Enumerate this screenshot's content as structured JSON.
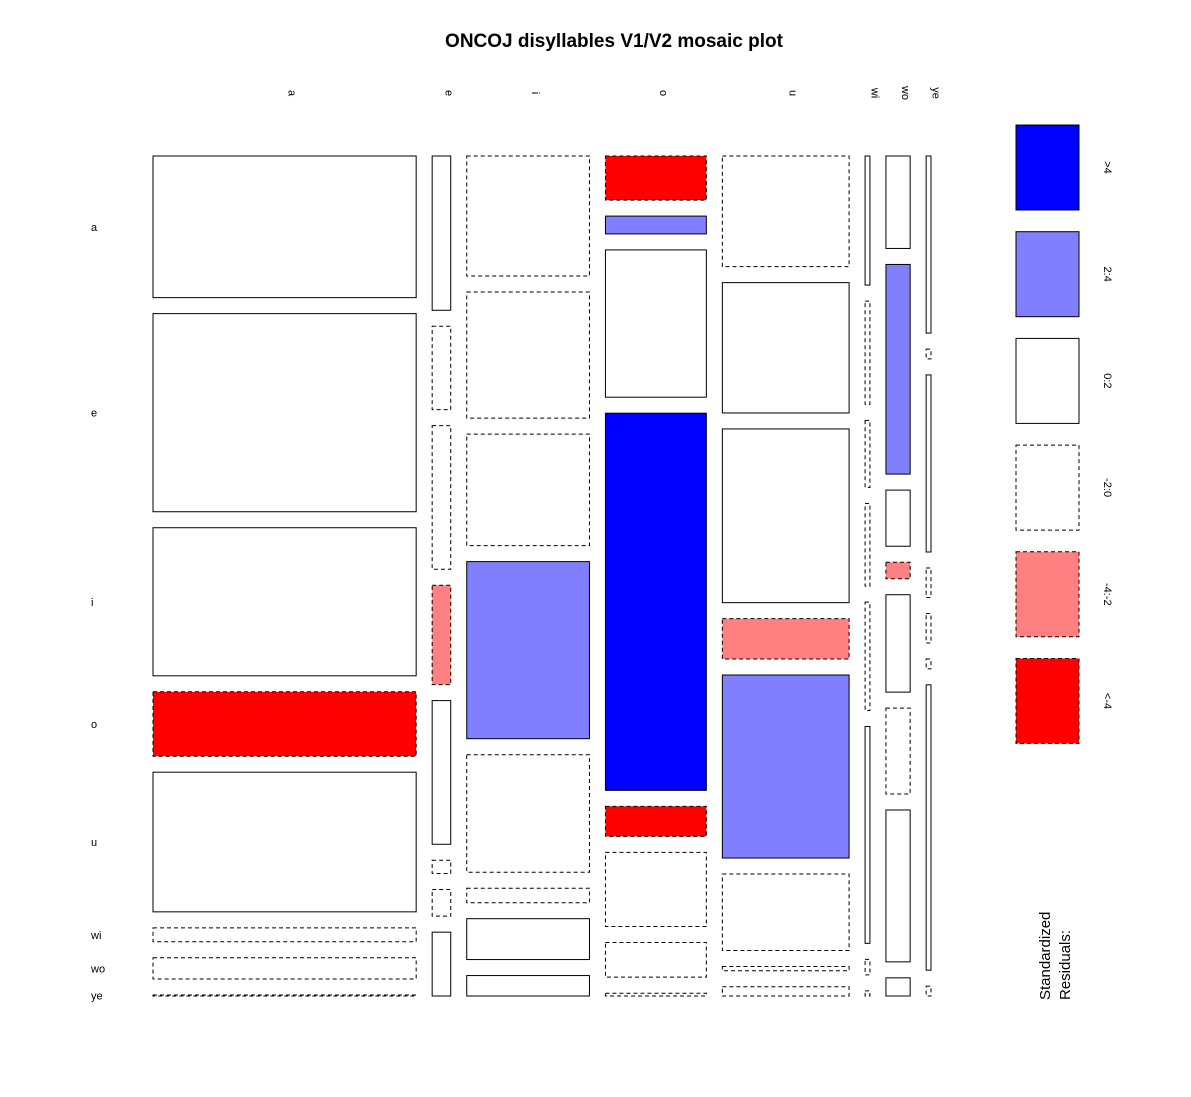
{
  "chart_data": {
    "type": "mosaic",
    "title": "ONCOJ disyllables V1/V2 mosaic plot",
    "x_categories": [
      "a",
      "e",
      "i",
      "o",
      "u",
      "wi",
      "wo",
      "ye"
    ],
    "y_categories": [
      "a",
      "e",
      "i",
      "o",
      "u",
      "wi",
      "wo",
      "ye"
    ],
    "column_proportions": [
      0.326,
      0.023,
      0.152,
      0.125,
      0.157,
      0.006,
      0.03,
      0.006
    ],
    "cells": [
      [
        [
          0.286,
          "0:2"
        ],
        [
          0.174,
          "0:2"
        ],
        [
          0.141,
          "-2:0"
        ],
        [
          0.047,
          "<-4"
        ],
        [
          0.107,
          "-2:0"
        ],
        [
          0.025,
          "0:2"
        ],
        [
          0.056,
          "0:2"
        ],
        [
          0.018,
          "0:2"
        ]
      ],
      [
        [
          0.4,
          "0:2"
        ],
        [
          0.094,
          "-2:0"
        ],
        [
          0.148,
          "-2:0"
        ],
        [
          0.019,
          "2:4"
        ],
        [
          0.126,
          "0:2"
        ],
        [
          0.02,
          "-2:0"
        ],
        [
          0.127,
          "2:4"
        ],
        [
          0.001,
          "-2:0"
        ]
      ],
      [
        [
          0.299,
          "0:2"
        ],
        [
          0.162,
          "-2:0"
        ],
        [
          0.131,
          "-2:0"
        ],
        [
          0.157,
          "0:2"
        ],
        [
          0.168,
          "0:2"
        ],
        [
          0.013,
          "-2:0"
        ],
        [
          0.034,
          "0:2"
        ],
        [
          0.018,
          "0:2"
        ]
      ],
      [
        [
          0.13,
          "<-4"
        ],
        [
          0.112,
          "-4:-2"
        ],
        [
          0.208,
          "2:4"
        ],
        [
          0.402,
          ">4"
        ],
        [
          0.039,
          "-4:-2"
        ],
        [
          0.016,
          "-2:0"
        ],
        [
          0.01,
          "-4:-2"
        ],
        [
          0.003,
          "-2:0"
        ]
      ],
      [
        [
          0.282,
          "0:2"
        ],
        [
          0.162,
          "0:2"
        ],
        [
          0.138,
          "-2:0"
        ],
        [
          0.032,
          "<-4"
        ],
        [
          0.177,
          "2:4"
        ],
        [
          0.021,
          "-2:0"
        ],
        [
          0.059,
          "0:2"
        ],
        [
          0.003,
          "-2:0"
        ]
      ],
      [
        [
          0.028,
          "-2:0"
        ],
        [
          0.015,
          "-2:0"
        ],
        [
          0.017,
          "-2:0"
        ],
        [
          0.079,
          "-2:0"
        ],
        [
          0.074,
          "-2:0"
        ],
        [
          0.042,
          "0:2"
        ],
        [
          0.052,
          "-2:0"
        ],
        [
          0.001,
          "-2:0"
        ]
      ],
      [
        [
          0.043,
          "-2:0"
        ],
        [
          0.03,
          "-2:0"
        ],
        [
          0.048,
          "0:2"
        ],
        [
          0.037,
          "-2:0"
        ],
        [
          0.004,
          "-2:0"
        ],
        [
          0.003,
          "-2:0"
        ],
        [
          0.092,
          "0:2"
        ],
        [
          0.029,
          "0:2"
        ]
      ],
      [
        [
          0.002,
          "-2:0"
        ],
        [
          0.072,
          "0:2"
        ],
        [
          0.024,
          "0:2"
        ],
        [
          0.003,
          "-2:0"
        ],
        [
          0.009,
          "-2:0"
        ],
        [
          0.001,
          "-2:0"
        ],
        [
          0.011,
          "0:2"
        ],
        [
          0.001,
          "-2:0"
        ]
      ]
    ],
    "legend": {
      "title_lines": [
        "Standardized",
        "Residuals:"
      ],
      "placement": "right",
      "classes": [
        {
          "label": ">4",
          "color": "#0000ff",
          "dashed": false
        },
        {
          "label": "2:4",
          "color": "#8080ff",
          "dashed": false
        },
        {
          "label": "0:2",
          "color": "#ffffff",
          "dashed": false
        },
        {
          "label": "-2:0",
          "color": "#ffffff",
          "dashed": true
        },
        {
          "label": "-4:-2",
          "color": "#ff8080",
          "dashed": true
        },
        {
          "label": "<-4",
          "color": "#ff0000",
          "dashed": true
        }
      ]
    }
  }
}
